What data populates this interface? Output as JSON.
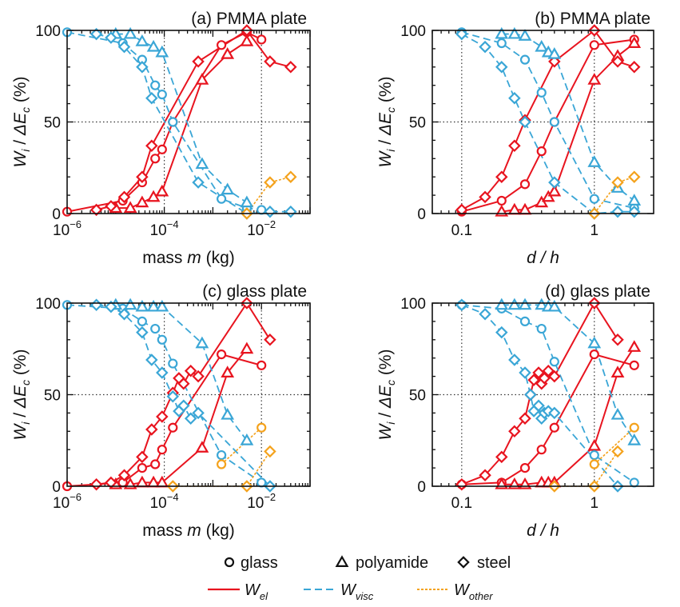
{
  "colors": {
    "el": "#e8141f",
    "visc": "#3aa6d6",
    "other": "#f4a21c",
    "axis": "#111111",
    "grid": "#333333"
  },
  "legend": {
    "markers": [
      {
        "shape": "circle",
        "label": "glass"
      },
      {
        "shape": "triangle",
        "label": "polyamide"
      },
      {
        "shape": "diamond",
        "label": "steel"
      }
    ],
    "lines": [
      {
        "key": "el",
        "main": "W",
        "sub": "el"
      },
      {
        "key": "visc",
        "main": "W",
        "sub": "visc"
      },
      {
        "key": "other",
        "main": "W",
        "sub": "other"
      }
    ]
  },
  "chart_data": [
    {
      "id": "a",
      "type": "line",
      "title": "(a) PMMA plate",
      "xscale": "log",
      "xlim": [
        1e-06,
        0.1
      ],
      "ylim": [
        0,
        100
      ],
      "xticks": [
        {
          "v": 1e-06,
          "base": "10",
          "exp": "−6"
        },
        {
          "v": 0.0001,
          "base": "10",
          "exp": "−4"
        },
        {
          "v": 0.01,
          "base": "10",
          "exp": "−2"
        }
      ],
      "xlabel": {
        "pre": "mass ",
        "var": "m",
        "post": " (kg)"
      },
      "ylabel": {
        "main": "W",
        "sub": "i",
        "rest": " / ΔE",
        "sub2": "c",
        "tail": " (%)"
      },
      "yticks": [
        0,
        50,
        100
      ],
      "grid": {
        "x": [
          0.0001,
          0.01
        ],
        "y": [
          50
        ]
      },
      "series": [
        {
          "kind": "el",
          "marker": "circle",
          "x": [
            1e-06,
            1.4e-05,
            3.5e-05,
            6.5e-05,
            9e-05,
            0.00015,
            0.0015,
            0.005,
            0.01
          ],
          "y": [
            1,
            7,
            17,
            30,
            35,
            50,
            92,
            99,
            95
          ]
        },
        {
          "kind": "el",
          "marker": "triangle",
          "x": [
            1e-05,
            2e-05,
            3.5e-05,
            6e-05,
            9e-05,
            0.0006,
            0.002,
            0.005
          ],
          "y": [
            3,
            3,
            6,
            9,
            12,
            73,
            87,
            94
          ]
        },
        {
          "kind": "el",
          "marker": "diamond",
          "x": [
            4e-06,
            8e-06,
            1.5e-05,
            3.5e-05,
            5.5e-05,
            0.0005,
            0.005,
            0.015,
            0.04
          ],
          "y": [
            2,
            4,
            9,
            20,
            37,
            83,
            100,
            83,
            80
          ]
        },
        {
          "kind": "visc",
          "marker": "circle",
          "x": [
            1e-06,
            1.4e-05,
            3.5e-05,
            6.5e-05,
            9e-05,
            0.00015,
            0.0015,
            0.005,
            0.01
          ],
          "y": [
            99,
            93,
            84,
            70,
            65,
            50,
            8,
            3,
            2
          ]
        },
        {
          "kind": "visc",
          "marker": "triangle",
          "x": [
            1e-05,
            2e-05,
            3.5e-05,
            6e-05,
            9e-05,
            0.0006,
            0.002,
            0.005
          ],
          "y": [
            98,
            98,
            94,
            91,
            88,
            27,
            13,
            6
          ]
        },
        {
          "kind": "visc",
          "marker": "diamond",
          "x": [
            4e-06,
            8e-06,
            1.5e-05,
            3.5e-05,
            5.5e-05,
            0.0005,
            0.005,
            0.015,
            0.04
          ],
          "y": [
            98,
            96,
            91,
            80,
            63,
            17,
            0,
            1,
            1
          ]
        },
        {
          "kind": "other",
          "marker": "diamond",
          "x": [
            0.005,
            0.015,
            0.04
          ],
          "y": [
            0,
            17,
            20
          ]
        }
      ]
    },
    {
      "id": "b",
      "type": "line",
      "title": "(b) PMMA plate",
      "xscale": "log",
      "xlim": [
        0.06,
        2.8
      ],
      "ylim": [
        0,
        100
      ],
      "xticks": [
        {
          "v": 0.1,
          "label": "0.1"
        },
        {
          "v": 1,
          "label": "1"
        }
      ],
      "xlabel": {
        "pre": "",
        "var": "d / h",
        "post": ""
      },
      "ylabel": {
        "main": "W",
        "sub": "i",
        "rest": " / ΔE",
        "sub2": "c",
        "tail": " (%)"
      },
      "yticks": [
        0,
        50,
        100
      ],
      "grid": {
        "x": [
          0.1,
          1
        ],
        "y": [
          50
        ]
      },
      "series": [
        {
          "kind": "el",
          "marker": "circle",
          "x": [
            0.1,
            0.2,
            0.3,
            0.4,
            0.5,
            1,
            2
          ],
          "y": [
            1,
            7,
            16,
            34,
            50,
            92,
            95
          ]
        },
        {
          "kind": "el",
          "marker": "triangle",
          "x": [
            0.2,
            0.25,
            0.3,
            0.4,
            0.45,
            0.5,
            1,
            1.5,
            2
          ],
          "y": [
            1,
            2,
            2,
            6,
            9,
            12,
            73,
            86,
            93
          ]
        },
        {
          "kind": "el",
          "marker": "diamond",
          "x": [
            0.1,
            0.15,
            0.2,
            0.25,
            0.3,
            0.5,
            1,
            1.5,
            2
          ],
          "y": [
            2,
            9,
            20,
            37,
            51,
            83,
            100,
            83,
            80
          ]
        },
        {
          "kind": "visc",
          "marker": "circle",
          "x": [
            0.1,
            0.2,
            0.3,
            0.4,
            0.5,
            1,
            2
          ],
          "y": [
            99,
            93,
            84,
            66,
            50,
            8,
            3
          ]
        },
        {
          "kind": "visc",
          "marker": "triangle",
          "x": [
            0.2,
            0.25,
            0.3,
            0.4,
            0.45,
            0.5,
            1,
            1.5,
            2
          ],
          "y": [
            98,
            98,
            97,
            91,
            88,
            87,
            28,
            14,
            7
          ]
        },
        {
          "kind": "visc",
          "marker": "diamond",
          "x": [
            0.1,
            0.15,
            0.2,
            0.25,
            0.3,
            0.5,
            1,
            1.5,
            2
          ],
          "y": [
            98,
            91,
            80,
            63,
            50,
            17,
            0,
            1,
            1
          ]
        },
        {
          "kind": "other",
          "marker": "diamond",
          "x": [
            1,
            1.5,
            2
          ],
          "y": [
            0,
            17,
            20
          ]
        }
      ]
    },
    {
      "id": "c",
      "type": "line",
      "title": "(c) glass plate",
      "xscale": "log",
      "xlim": [
        1e-06,
        0.1
      ],
      "ylim": [
        0,
        100
      ],
      "xticks": [
        {
          "v": 1e-06,
          "base": "10",
          "exp": "−6"
        },
        {
          "v": 0.0001,
          "base": "10",
          "exp": "−4"
        },
        {
          "v": 0.01,
          "base": "10",
          "exp": "−2"
        }
      ],
      "xlabel": {
        "pre": "mass ",
        "var": "m",
        "post": " (kg)"
      },
      "ylabel": {
        "main": "W",
        "sub": "i",
        "rest": " / ΔE",
        "sub2": "c",
        "tail": " (%)"
      },
      "yticks": [
        0,
        50,
        100
      ],
      "grid": {
        "x": [
          0.0001,
          0.01
        ],
        "y": [
          50
        ]
      },
      "series": [
        {
          "kind": "el",
          "marker": "circle",
          "x": [
            1e-06,
            1.4e-05,
            3.5e-05,
            6.5e-05,
            9e-05,
            0.00015,
            0.0015,
            0.01
          ],
          "y": [
            0,
            2,
            10,
            12,
            20,
            32,
            72,
            66
          ]
        },
        {
          "kind": "el",
          "marker": "triangle",
          "x": [
            1e-05,
            2e-05,
            3.5e-05,
            6e-05,
            9e-05,
            0.0006,
            0.002,
            0.005
          ],
          "y": [
            1,
            1,
            2,
            2,
            2,
            21,
            62,
            75
          ]
        },
        {
          "kind": "el",
          "marker": "diamond",
          "x": [
            4e-06,
            8e-06,
            1.5e-05,
            3.5e-05,
            5.5e-05,
            9e-05,
            0.00015,
            0.0002,
            0.00025,
            0.00035,
            0.0005,
            0.005,
            0.015
          ],
          "y": [
            1,
            2,
            6,
            16,
            31,
            38,
            51,
            59,
            56,
            63,
            60,
            100,
            80
          ]
        },
        {
          "kind": "visc",
          "marker": "circle",
          "x": [
            1e-06,
            1.4e-05,
            3.5e-05,
            6.5e-05,
            9e-05,
            0.00015,
            0.0015,
            0.01
          ],
          "y": [
            99,
            97,
            90,
            86,
            80,
            67,
            17,
            2
          ]
        },
        {
          "kind": "visc",
          "marker": "triangle",
          "x": [
            1e-05,
            2e-05,
            3.5e-05,
            6e-05,
            9e-05,
            0.0006,
            0.002,
            0.005
          ],
          "y": [
            99,
            99,
            98,
            98,
            98,
            78,
            39,
            25
          ]
        },
        {
          "kind": "visc",
          "marker": "diamond",
          "x": [
            4e-06,
            8e-06,
            1.5e-05,
            3.5e-05,
            5.5e-05,
            9e-05,
            0.00015,
            0.0002,
            0.00025,
            0.00035,
            0.0005,
            0.015
          ],
          "y": [
            99,
            98,
            94,
            84,
            69,
            62,
            49,
            41,
            44,
            37,
            40,
            0
          ]
        },
        {
          "kind": "other",
          "marker": "circle",
          "x": [
            0.0015,
            0.01
          ],
          "y": [
            12,
            32
          ]
        },
        {
          "kind": "other",
          "marker": "diamond",
          "x": [
            0.00015,
            0.005,
            0.015
          ],
          "y": [
            0,
            0,
            19
          ]
        }
      ]
    },
    {
      "id": "d",
      "type": "line",
      "title": "(d) glass plate",
      "xscale": "log",
      "xlim": [
        0.06,
        2.8
      ],
      "ylim": [
        0,
        100
      ],
      "xticks": [
        {
          "v": 0.1,
          "label": "0.1"
        },
        {
          "v": 1,
          "label": "1"
        }
      ],
      "xlabel": {
        "pre": "",
        "var": "d / h",
        "post": ""
      },
      "ylabel": {
        "main": "W",
        "sub": "i",
        "rest": " / ΔE",
        "sub2": "c",
        "tail": " (%)"
      },
      "yticks": [
        0,
        50,
        100
      ],
      "grid": {
        "x": [
          0.1,
          1
        ],
        "y": [
          50
        ]
      },
      "series": [
        {
          "kind": "el",
          "marker": "circle",
          "x": [
            0.1,
            0.2,
            0.3,
            0.4,
            0.5,
            1,
            2
          ],
          "y": [
            1,
            2,
            10,
            20,
            32,
            72,
            66
          ]
        },
        {
          "kind": "el",
          "marker": "triangle",
          "x": [
            0.2,
            0.25,
            0.3,
            0.4,
            0.45,
            0.5,
            1,
            1.5,
            2
          ],
          "y": [
            1,
            1,
            1,
            2,
            2,
            2,
            22,
            62,
            76
          ]
        },
        {
          "kind": "el",
          "marker": "diamond",
          "x": [
            0.1,
            0.15,
            0.2,
            0.25,
            0.3,
            0.33,
            0.35,
            0.38,
            0.4,
            0.42,
            0.45,
            0.5,
            1,
            1.5
          ],
          "y": [
            1,
            6,
            16,
            30,
            37,
            50,
            58,
            62,
            56,
            59,
            63,
            60,
            100,
            80
          ]
        },
        {
          "kind": "visc",
          "marker": "circle",
          "x": [
            0.1,
            0.2,
            0.3,
            0.4,
            0.5,
            1,
            2
          ],
          "y": [
            99,
            97,
            90,
            86,
            68,
            17,
            2
          ]
        },
        {
          "kind": "visc",
          "marker": "triangle",
          "x": [
            0.2,
            0.25,
            0.3,
            0.4,
            0.45,
            0.5,
            1,
            1.5,
            2
          ],
          "y": [
            99,
            99,
            99,
            99,
            98,
            98,
            78,
            39,
            25
          ]
        },
        {
          "kind": "visc",
          "marker": "diamond",
          "x": [
            0.1,
            0.15,
            0.2,
            0.25,
            0.3,
            0.33,
            0.35,
            0.38,
            0.4,
            0.42,
            0.45,
            0.5,
            1.5
          ],
          "y": [
            99,
            94,
            84,
            69,
            62,
            50,
            41,
            44,
            37,
            40,
            41,
            40,
            0
          ]
        },
        {
          "kind": "other",
          "marker": "circle",
          "x": [
            1,
            2
          ],
          "y": [
            12,
            32
          ]
        },
        {
          "kind": "other",
          "marker": "diamond",
          "x": [
            0.5,
            1,
            1.5
          ],
          "y": [
            0,
            0,
            19
          ]
        }
      ]
    }
  ]
}
